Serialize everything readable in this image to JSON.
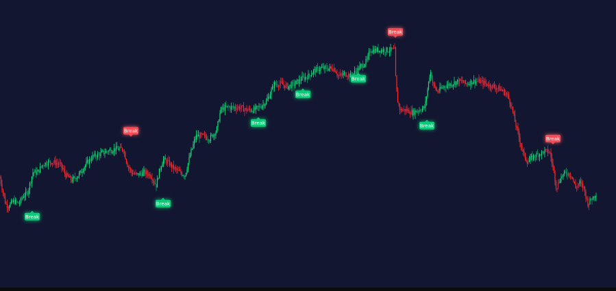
{
  "chart_data": {
    "type": "candlestick",
    "title": "",
    "xlabel": "",
    "ylabel": "",
    "grid": false,
    "ylim": [
      0,
      100
    ],
    "colors": {
      "background": "#131630",
      "bullish": "#16e07a",
      "bullish_dark": "#0f9d5a",
      "bearish": "#ff2a2a",
      "bearish_dark": "#c02a4a",
      "break_up": "#10c878",
      "break_down": "#f24d57"
    },
    "path_points": [
      {
        "x": 0,
        "y": 37
      },
      {
        "x": 8,
        "y": 27
      },
      {
        "x": 12,
        "y": 26
      },
      {
        "x": 20,
        "y": 28
      },
      {
        "x": 28,
        "y": 27
      },
      {
        "x": 34,
        "y": 30
      },
      {
        "x": 40,
        "y": 31
      },
      {
        "x": 48,
        "y": 39
      },
      {
        "x": 55,
        "y": 39
      },
      {
        "x": 62,
        "y": 42
      },
      {
        "x": 70,
        "y": 43
      },
      {
        "x": 78,
        "y": 43
      },
      {
        "x": 88,
        "y": 42
      },
      {
        "x": 96,
        "y": 38
      },
      {
        "x": 105,
        "y": 36
      },
      {
        "x": 115,
        "y": 38
      },
      {
        "x": 125,
        "y": 42
      },
      {
        "x": 135,
        "y": 45
      },
      {
        "x": 145,
        "y": 46
      },
      {
        "x": 155,
        "y": 47
      },
      {
        "x": 168,
        "y": 48
      },
      {
        "x": 180,
        "y": 48
      },
      {
        "x": 186,
        "y": 42
      },
      {
        "x": 192,
        "y": 39
      },
      {
        "x": 200,
        "y": 38
      },
      {
        "x": 210,
        "y": 39
      },
      {
        "x": 220,
        "y": 38
      },
      {
        "x": 228,
        "y": 34
      },
      {
        "x": 232,
        "y": 39
      },
      {
        "x": 238,
        "y": 44
      },
      {
        "x": 245,
        "y": 43
      },
      {
        "x": 252,
        "y": 41
      },
      {
        "x": 262,
        "y": 39
      },
      {
        "x": 270,
        "y": 38
      },
      {
        "x": 278,
        "y": 46
      },
      {
        "x": 286,
        "y": 53
      },
      {
        "x": 296,
        "y": 53
      },
      {
        "x": 306,
        "y": 52
      },
      {
        "x": 316,
        "y": 55
      },
      {
        "x": 322,
        "y": 63
      },
      {
        "x": 330,
        "y": 64
      },
      {
        "x": 340,
        "y": 64
      },
      {
        "x": 350,
        "y": 64
      },
      {
        "x": 360,
        "y": 63
      },
      {
        "x": 370,
        "y": 63
      },
      {
        "x": 378,
        "y": 64
      },
      {
        "x": 388,
        "y": 66
      },
      {
        "x": 394,
        "y": 69
      },
      {
        "x": 400,
        "y": 73
      },
      {
        "x": 410,
        "y": 73
      },
      {
        "x": 420,
        "y": 72
      },
      {
        "x": 430,
        "y": 73
      },
      {
        "x": 440,
        "y": 75
      },
      {
        "x": 450,
        "y": 76
      },
      {
        "x": 458,
        "y": 78
      },
      {
        "x": 468,
        "y": 79
      },
      {
        "x": 478,
        "y": 79
      },
      {
        "x": 488,
        "y": 79
      },
      {
        "x": 494,
        "y": 76
      },
      {
        "x": 505,
        "y": 77
      },
      {
        "x": 512,
        "y": 76
      },
      {
        "x": 520,
        "y": 78
      },
      {
        "x": 528,
        "y": 80
      },
      {
        "x": 536,
        "y": 82
      },
      {
        "x": 540,
        "y": 86
      },
      {
        "x": 550,
        "y": 86
      },
      {
        "x": 560,
        "y": 86
      },
      {
        "x": 570,
        "y": 86
      },
      {
        "x": 576,
        "y": 86
      },
      {
        "x": 578,
        "y": 72
      },
      {
        "x": 580,
        "y": 67
      },
      {
        "x": 584,
        "y": 63
      },
      {
        "x": 592,
        "y": 63
      },
      {
        "x": 602,
        "y": 62
      },
      {
        "x": 612,
        "y": 63
      },
      {
        "x": 620,
        "y": 64
      },
      {
        "x": 624,
        "y": 71
      },
      {
        "x": 628,
        "y": 78
      },
      {
        "x": 632,
        "y": 73
      },
      {
        "x": 638,
        "y": 70
      },
      {
        "x": 648,
        "y": 72
      },
      {
        "x": 658,
        "y": 73
      },
      {
        "x": 668,
        "y": 74
      },
      {
        "x": 674,
        "y": 74
      },
      {
        "x": 680,
        "y": 73
      },
      {
        "x": 690,
        "y": 74
      },
      {
        "x": 700,
        "y": 74
      },
      {
        "x": 710,
        "y": 73
      },
      {
        "x": 720,
        "y": 72
      },
      {
        "x": 730,
        "y": 71
      },
      {
        "x": 740,
        "y": 69
      },
      {
        "x": 746,
        "y": 65
      },
      {
        "x": 752,
        "y": 58
      },
      {
        "x": 758,
        "y": 52
      },
      {
        "x": 764,
        "y": 46
      },
      {
        "x": 770,
        "y": 43
      },
      {
        "x": 778,
        "y": 45
      },
      {
        "x": 786,
        "y": 46
      },
      {
        "x": 794,
        "y": 47
      },
      {
        "x": 802,
        "y": 47
      },
      {
        "x": 808,
        "y": 40
      },
      {
        "x": 812,
        "y": 33
      },
      {
        "x": 818,
        "y": 37
      },
      {
        "x": 826,
        "y": 39
      },
      {
        "x": 834,
        "y": 38
      },
      {
        "x": 840,
        "y": 33
      },
      {
        "x": 846,
        "y": 35
      },
      {
        "x": 852,
        "y": 33
      },
      {
        "x": 858,
        "y": 27
      },
      {
        "x": 864,
        "y": 29
      },
      {
        "x": 870,
        "y": 31
      }
    ],
    "annotations": [
      {
        "text": "Break",
        "direction": "up",
        "x": 47,
        "y": 22
      },
      {
        "text": "Break",
        "direction": "down",
        "x": 191,
        "y": 55
      },
      {
        "text": "Break",
        "direction": "up",
        "x": 238,
        "y": 27
      },
      {
        "text": "Break",
        "direction": "up",
        "x": 377,
        "y": 58
      },
      {
        "text": "Break",
        "direction": "up",
        "x": 442,
        "y": 69
      },
      {
        "text": "Break",
        "direction": "up",
        "x": 523,
        "y": 75
      },
      {
        "text": "Break",
        "direction": "down",
        "x": 577,
        "y": 93
      },
      {
        "text": "Break",
        "direction": "up",
        "x": 623,
        "y": 57
      },
      {
        "text": "Break",
        "direction": "down",
        "x": 807,
        "y": 52
      }
    ]
  }
}
